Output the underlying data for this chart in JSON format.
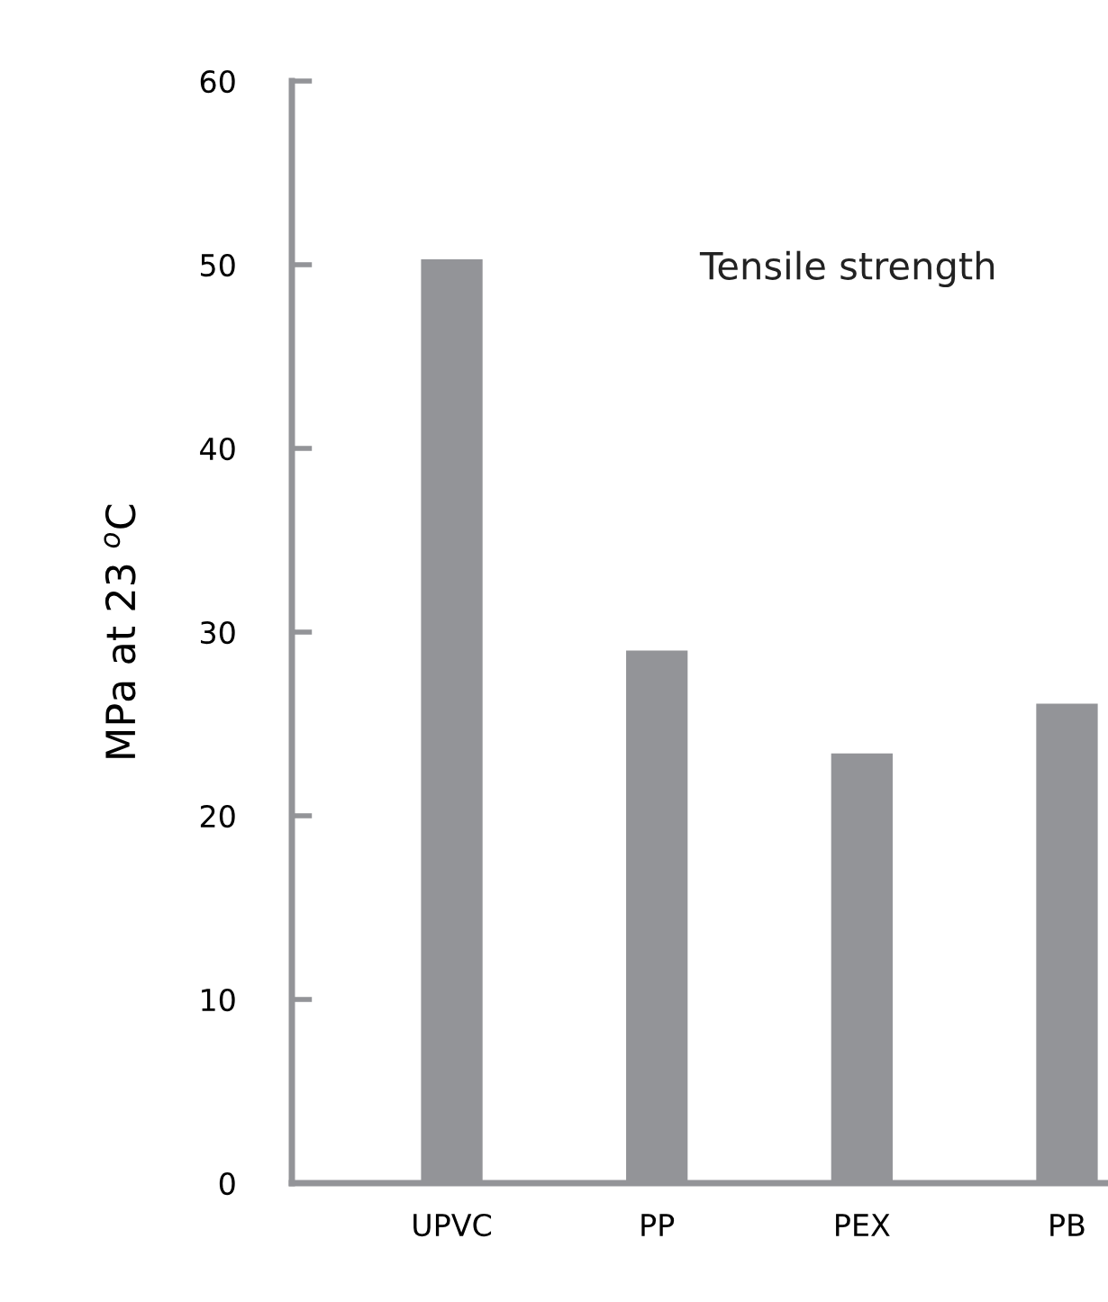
{
  "chart_data": {
    "type": "bar",
    "ylabel": "MPa at 23 $^{o}$C",
    "categories": [
      "UPVC",
      "PP",
      "PEX",
      "PB"
    ],
    "values": [
      50.3,
      29.0,
      23.4,
      26.1
    ],
    "color": "#939498",
    "ylim": [
      0,
      60
    ],
    "yticks": [
      0,
      10,
      20,
      30,
      40,
      50,
      60
    ],
    "grid": false,
    "annotations": [
      "Tensile strength"
    ]
  }
}
